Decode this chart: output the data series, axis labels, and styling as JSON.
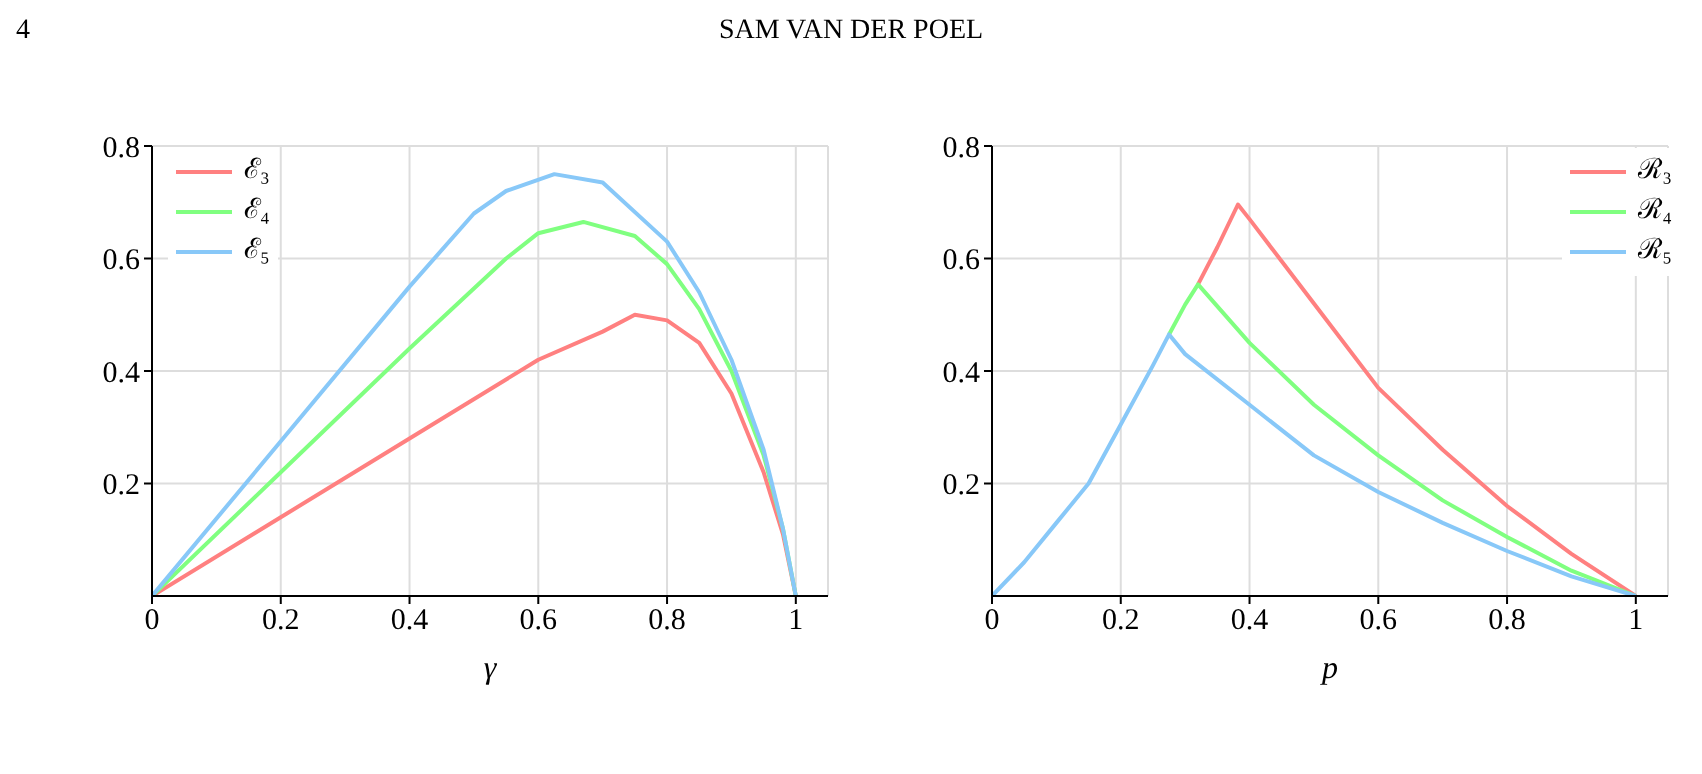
{
  "chart_data": [
    {
      "type": "line",
      "annotations": [
        "4",
        "SAM VAN DER POEL"
      ],
      "xlabel": "γ",
      "xlim": [
        0,
        1.05
      ],
      "ylim": [
        0,
        0.8
      ],
      "xticks": [
        0,
        0.2,
        0.4,
        0.6,
        0.8,
        1
      ],
      "yticks": [
        0.2,
        0.4,
        0.6,
        0.8
      ],
      "grid": true,
      "legend": "top left",
      "marker": "none",
      "line_style": "solid",
      "series": [
        {
          "name": "ℰ₃",
          "color": "#ff8080",
          "x": [
            0,
            0.2,
            0.4,
            0.6,
            0.7,
            0.75,
            0.8,
            0.85,
            0.9,
            0.95,
            0.98,
            1
          ],
          "values": [
            0,
            0.14,
            0.28,
            0.42,
            0.47,
            0.5,
            0.49,
            0.45,
            0.36,
            0.22,
            0.11,
            0
          ]
        },
        {
          "name": "ℰ₄",
          "color": "#80ff80",
          "x": [
            0,
            0.2,
            0.4,
            0.55,
            0.6,
            0.67,
            0.75,
            0.8,
            0.85,
            0.9,
            0.95,
            0.98,
            1
          ],
          "values": [
            0,
            0.22,
            0.44,
            0.6,
            0.645,
            0.665,
            0.64,
            0.59,
            0.51,
            0.4,
            0.25,
            0.12,
            0
          ]
        },
        {
          "name": "ℰ₅",
          "color": "#88c8f8",
          "x": [
            0,
            0.2,
            0.4,
            0.5,
            0.55,
            0.625,
            0.7,
            0.8,
            0.85,
            0.9,
            0.95,
            0.98,
            1
          ],
          "values": [
            0,
            0.275,
            0.55,
            0.68,
            0.72,
            0.75,
            0.735,
            0.63,
            0.54,
            0.42,
            0.26,
            0.12,
            0
          ]
        }
      ]
    },
    {
      "type": "line",
      "xlabel": "p",
      "xlim": [
        0,
        1.05
      ],
      "ylim": [
        0,
        0.8
      ],
      "xticks": [
        0,
        0.2,
        0.4,
        0.6,
        0.8,
        1
      ],
      "yticks": [
        0.2,
        0.4,
        0.6,
        0.8
      ],
      "grid": true,
      "legend": "top right",
      "marker": "none",
      "line_style": "solid",
      "series": [
        {
          "name": "ℛ₃",
          "color": "#ff8080",
          "x": [
            0.32,
            0.35,
            0.382,
            0.4,
            0.5,
            0.6,
            0.7,
            0.8,
            0.9,
            1
          ],
          "values": [
            0.554,
            0.62,
            0.696,
            0.67,
            0.52,
            0.37,
            0.26,
            0.16,
            0.075,
            0
          ]
        },
        {
          "name": "ℛ₄",
          "color": "#80ff80",
          "x": [
            0.275,
            0.3,
            0.32,
            0.4,
            0.5,
            0.6,
            0.7,
            0.8,
            0.9,
            1
          ],
          "values": [
            0.465,
            0.518,
            0.554,
            0.45,
            0.34,
            0.25,
            0.17,
            0.105,
            0.045,
            0
          ]
        },
        {
          "name": "ℛ₅",
          "color": "#88c8f8",
          "x": [
            0,
            0.05,
            0.1,
            0.15,
            0.2,
            0.25,
            0.275,
            0.3,
            0.4,
            0.5,
            0.6,
            0.7,
            0.8,
            0.9,
            1
          ],
          "values": [
            0,
            0.06,
            0.13,
            0.2,
            0.305,
            0.41,
            0.465,
            0.43,
            0.34,
            0.25,
            0.185,
            0.13,
            0.08,
            0.035,
            0
          ]
        }
      ]
    }
  ]
}
